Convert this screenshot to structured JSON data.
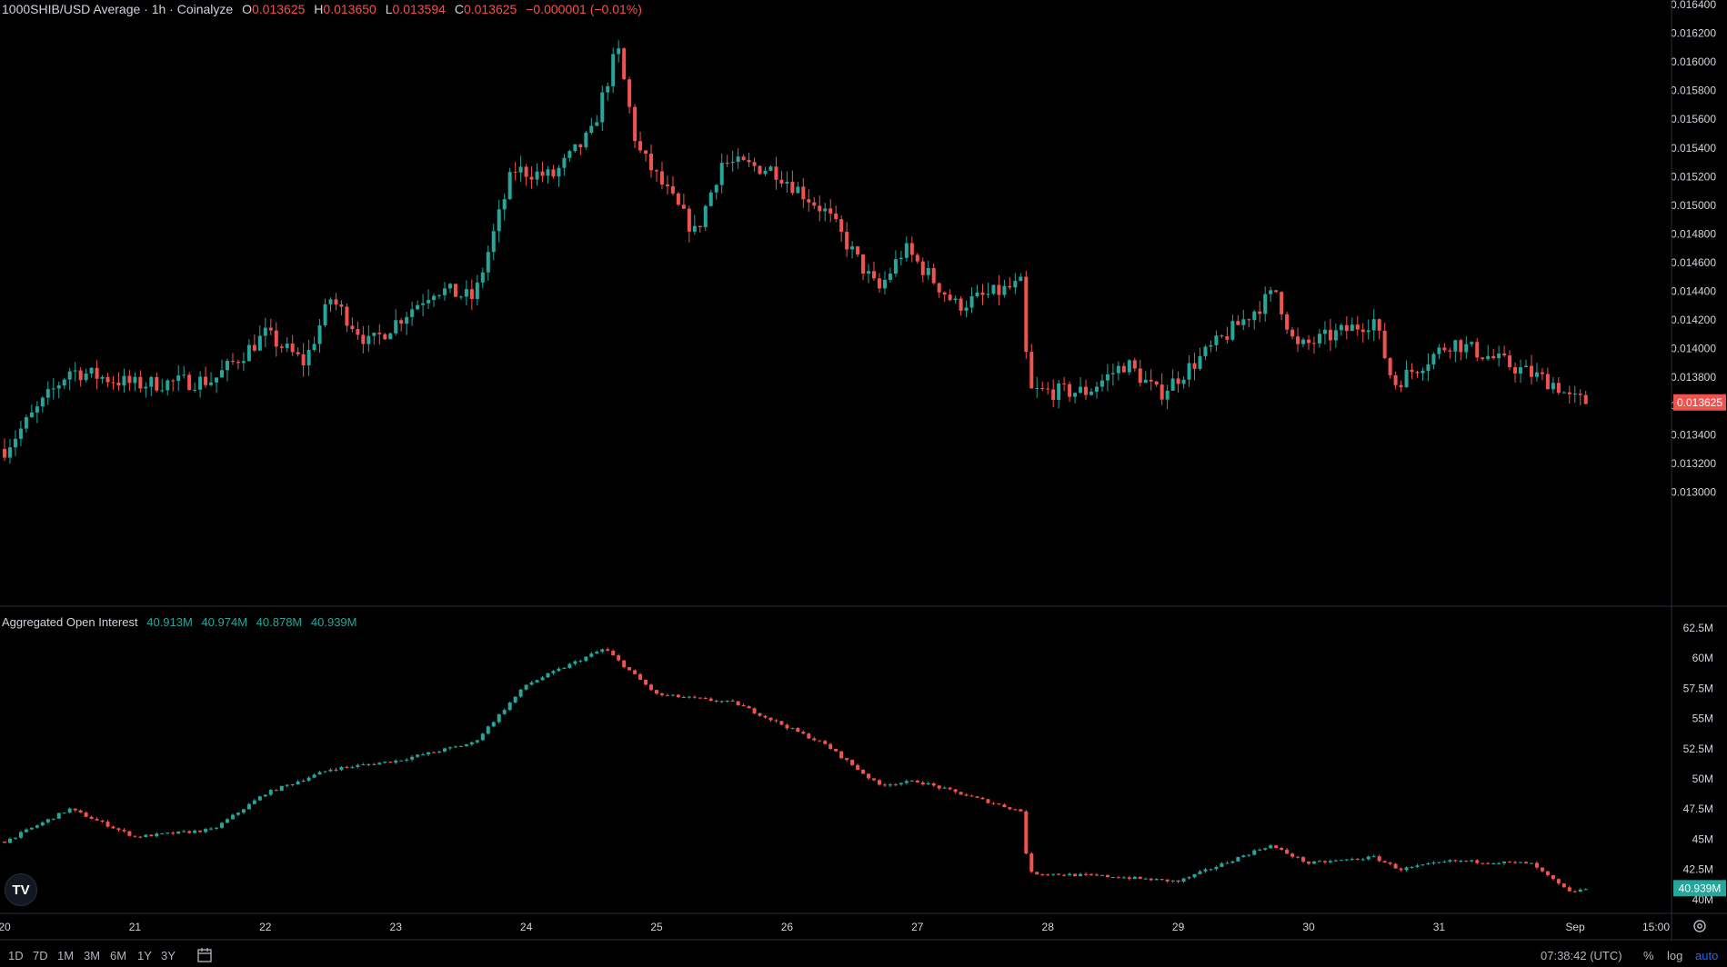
{
  "header": {
    "title": "1000SHIB/USD Average · 1h · Coinalyze",
    "o_label": "O",
    "o_value": "0.013625",
    "h_label": "H",
    "h_value": "0.013650",
    "l_label": "L",
    "l_value": "0.013594",
    "c_label": "C",
    "c_value": "0.013625",
    "change": "−0.000001 (−0.01%)"
  },
  "oi_header": {
    "title": "Aggregated Open Interest",
    "v1": "40.913M",
    "v2": "40.974M",
    "v3": "40.878M",
    "v4": "40.939M"
  },
  "colors": {
    "up": "#26a69a",
    "down": "#ef5350",
    "background": "#000000",
    "divider": "#2a2e39",
    "axis_text": "#d1d4dc",
    "accent": "#2962ff"
  },
  "icons": {
    "logo": "tradingview-logo-icon",
    "calendar": "calendar-range-icon",
    "settings": "gear-icon"
  },
  "tv_logo_text": "TV",
  "bottom_bar": {
    "ranges": [
      "1D",
      "7D",
      "1M",
      "3M",
      "6M",
      "1Y",
      "3Y"
    ],
    "clock": "07:38:42 (UTC)",
    "percent": "%",
    "log": "log",
    "auto": "auto"
  },
  "chart_data": [
    {
      "type": "candlestick",
      "title": "1000SHIB/USD Average · 1h · Coinalyze",
      "x_tick_labels": [
        "20",
        "21",
        "22",
        "23",
        "24",
        "25",
        "26",
        "27",
        "28",
        "29",
        "30",
        "31",
        "Sep",
        "15:00"
      ],
      "y_tick_labels": [
        "0.016400",
        "0.016200",
        "0.016000",
        "0.015800",
        "0.015600",
        "0.015400",
        "0.015200",
        "0.015000",
        "0.014800",
        "0.014600",
        "0.014400",
        "0.014200",
        "0.014000",
        "0.013800",
        "0.013600",
        "0.013400",
        "0.013200",
        "0.013000"
      ],
      "ylim": [
        0.0129,
        0.01641
      ],
      "last_price_label": "0.013625",
      "close_path": [
        [
          "20",
          0.0133
        ],
        [
          "20.5",
          0.01385
        ],
        [
          "21",
          0.01375
        ],
        [
          "21.6",
          0.01378
        ],
        [
          "22",
          0.0141
        ],
        [
          "22.3",
          0.0139
        ],
        [
          "22.5",
          0.01435
        ],
        [
          "22.8",
          0.01403
        ],
        [
          "23.3",
          0.01442
        ],
        [
          "23.6",
          0.01435
        ],
        [
          "23.9",
          0.01525
        ],
        [
          "24.2",
          0.0152
        ],
        [
          "24.5",
          0.0155
        ],
        [
          "24.7",
          0.0161
        ],
        [
          "24.85",
          0.0154
        ],
        [
          "25.3",
          0.0148
        ],
        [
          "25.5",
          0.0153
        ],
        [
          "25.9",
          0.01525
        ],
        [
          "26.3",
          0.01495
        ],
        [
          "26.7",
          0.0144
        ],
        [
          "26.9",
          0.0147
        ],
        [
          "27.3",
          0.0143
        ],
        [
          "27.8",
          0.01445
        ],
        [
          "27.85",
          0.0137
        ],
        [
          "28.3",
          0.0137
        ],
        [
          "28.6",
          0.0139
        ],
        [
          "28.85",
          0.01368
        ],
        [
          "29.5",
          0.0142
        ],
        [
          "29.75",
          0.0144
        ],
        [
          "29.9",
          0.014
        ],
        [
          "30.5",
          0.0142
        ],
        [
          "30.65",
          0.01375
        ],
        [
          "31.1",
          0.01405
        ],
        [
          "31.5",
          0.0139
        ],
        [
          "31.9",
          0.01375
        ],
        [
          "Sep 1",
          0.01365
        ],
        [
          "Sep 1.15",
          0.013625
        ]
      ]
    },
    {
      "type": "candlestick",
      "title": "Aggregated Open Interest",
      "x_tick_labels": [
        "20",
        "21",
        "22",
        "23",
        "24",
        "25",
        "26",
        "27",
        "28",
        "29",
        "30",
        "31",
        "Sep",
        "15:00"
      ],
      "y_tick_labels": [
        "62.5M",
        "60M",
        "57.5M",
        "55M",
        "52.5M",
        "50M",
        "47.5M",
        "45M",
        "42.5M",
        "40M"
      ],
      "ylim": [
        39.5,
        63.5
      ],
      "last_value_label": "40.939M",
      "values_millions": [
        [
          "20",
          44.8
        ],
        [
          "20.5",
          47.5
        ],
        [
          "21",
          45.2
        ],
        [
          "21.6",
          45.8
        ],
        [
          "22",
          48.8
        ],
        [
          "22.5",
          50.8
        ],
        [
          "23",
          51.5
        ],
        [
          "23.6",
          53.0
        ],
        [
          "24",
          57.8
        ],
        [
          "24.6",
          60.8
        ],
        [
          "25",
          57.0
        ],
        [
          "25.6",
          56.3
        ],
        [
          "25.9",
          54.8
        ],
        [
          "26.3",
          52.8
        ],
        [
          "26.7",
          49.5
        ],
        [
          "27",
          49.8
        ],
        [
          "27.8",
          47.3
        ],
        [
          "27.85",
          42.2
        ],
        [
          "28.5",
          41.9
        ],
        [
          "29",
          41.5
        ],
        [
          "29.7",
          44.5
        ],
        [
          "30",
          43.0
        ],
        [
          "30.5",
          43.5
        ],
        [
          "30.7",
          42.5
        ],
        [
          "31.1",
          43.2
        ],
        [
          "31.7",
          43.0
        ],
        [
          "Sep",
          40.6
        ],
        [
          "Sep 1.15",
          40.939
        ]
      ]
    }
  ]
}
